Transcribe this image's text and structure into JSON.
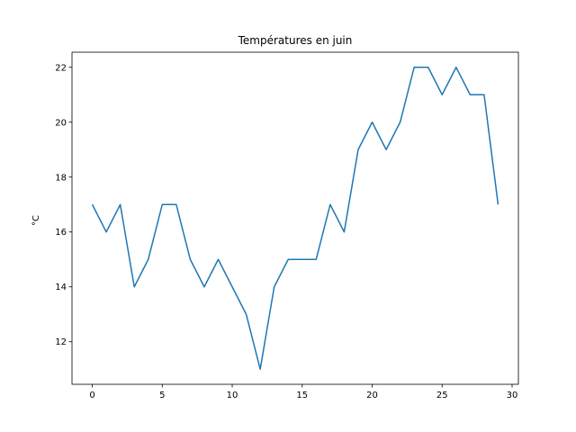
{
  "chart_data": {
    "type": "line",
    "title": "Températures en juin",
    "xlabel": "",
    "ylabel": "°C",
    "xlim": [
      -1.45,
      30.45
    ],
    "ylim": [
      10.45,
      22.55
    ],
    "xticks": [
      0,
      5,
      10,
      15,
      20,
      25,
      30
    ],
    "yticks": [
      12,
      14,
      16,
      18,
      20,
      22
    ],
    "grid": false,
    "series": [
      {
        "color": "#1f77b4",
        "x": [
          0,
          1,
          2,
          3,
          4,
          5,
          6,
          7,
          8,
          9,
          10,
          11,
          12,
          13,
          14,
          15,
          16,
          17,
          18,
          19,
          20,
          21,
          22,
          23,
          24,
          25,
          26,
          27,
          28,
          29
        ],
        "y": [
          17,
          16,
          17,
          14,
          15,
          17,
          17,
          15,
          14,
          15,
          14,
          13,
          11,
          14,
          15,
          15,
          15,
          17,
          16,
          19,
          20,
          19,
          20,
          22,
          22,
          21,
          22,
          21,
          21,
          17
        ]
      }
    ]
  }
}
